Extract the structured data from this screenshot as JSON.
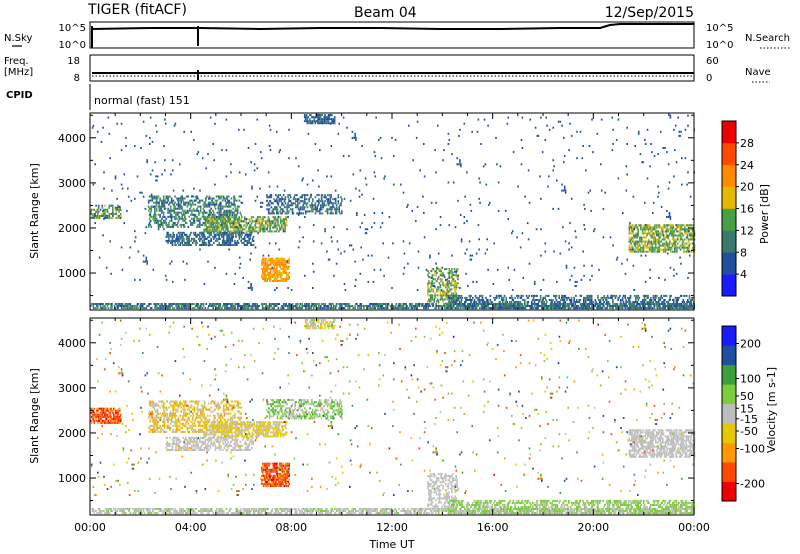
{
  "header": {
    "title": "TIGER (fitACF)",
    "beam": "Beam 04",
    "date": "12/Sep/2015"
  },
  "status_panels": {
    "nsky": {
      "label": "N.Sky",
      "top_tick": "10^5",
      "bottom_tick": "10^0",
      "right_label": "N.Search",
      "right_top_tick": "10^5",
      "right_bottom_tick": "10^0"
    },
    "freq": {
      "label_line1": "Freq.",
      "label_line2": "[MHz]",
      "top_tick": "18",
      "bottom_tick": "8",
      "right_label": "Nave",
      "right_top_tick": "60",
      "right_bottom_tick": "0"
    },
    "cpid": {
      "label": "CPID",
      "mode_text": "normal (fast) 151"
    }
  },
  "chart_data": [
    {
      "type": "heatmap",
      "name": "power",
      "ylabel": "Slant Range [km]",
      "ylim": [
        180,
        4550
      ],
      "yticks": [
        "1000",
        "2000",
        "3000",
        "4000"
      ],
      "ytick_values": [
        1000,
        2000,
        3000,
        4000
      ],
      "xlim": [
        0,
        24
      ],
      "colorbar": {
        "label": "Power [dB]",
        "range": [
          0,
          32
        ],
        "ticks": [
          "4",
          "8",
          "12",
          "16",
          "20",
          "24",
          "28"
        ],
        "tick_values": [
          4,
          8,
          12,
          16,
          20,
          24,
          28
        ],
        "colors": [
          "#1a1aff",
          "#1f4f9f",
          "#3a7a6a",
          "#46a046",
          "#e6b800",
          "#ff8c00",
          "#ff4a00",
          "#ee0000"
        ]
      },
      "regions": [
        {
          "t": [
            0.0,
            24.0
          ],
          "r": [
            200,
            330
          ],
          "p": 0.55,
          "v": [
            4,
            14
          ]
        },
        {
          "t": [
            0.0,
            1.2
          ],
          "r": [
            2200,
            2500
          ],
          "p": 0.45,
          "v": [
            6,
            18
          ]
        },
        {
          "t": [
            2.3,
            6.0
          ],
          "r": [
            2000,
            2700
          ],
          "p": 0.35,
          "v": [
            6,
            14
          ]
        },
        {
          "t": [
            3.0,
            6.5
          ],
          "r": [
            1600,
            1900
          ],
          "p": 0.4,
          "v": [
            4,
            12
          ]
        },
        {
          "t": [
            4.5,
            7.8
          ],
          "r": [
            1900,
            2250
          ],
          "p": 0.5,
          "v": [
            10,
            18
          ]
        },
        {
          "t": [
            6.8,
            7.9
          ],
          "r": [
            800,
            1300
          ],
          "p": 0.6,
          "v": [
            18,
            24
          ]
        },
        {
          "t": [
            7.0,
            10.0
          ],
          "r": [
            2300,
            2750
          ],
          "p": 0.35,
          "v": [
            4,
            12
          ]
        },
        {
          "t": [
            8.5,
            9.7
          ],
          "r": [
            4300,
            4500
          ],
          "p": 0.5,
          "v": [
            4,
            10
          ]
        },
        {
          "t": [
            13.4,
            14.6
          ],
          "r": [
            300,
            1100
          ],
          "p": 0.35,
          "v": [
            8,
            20
          ]
        },
        {
          "t": [
            14.2,
            24.0
          ],
          "r": [
            200,
            500
          ],
          "p": 0.35,
          "v": [
            4,
            12
          ]
        },
        {
          "t": [
            21.4,
            24.0
          ],
          "r": [
            1450,
            2050
          ],
          "p": 0.5,
          "v": [
            10,
            20
          ]
        },
        {
          "t": [
            0.0,
            24.0
          ],
          "r": [
            600,
            4500
          ],
          "p": 0.012,
          "v": [
            4,
            8
          ]
        }
      ]
    },
    {
      "type": "heatmap",
      "name": "velocity",
      "ylabel": "Slant Range [km]",
      "ylim": [
        180,
        4550
      ],
      "yticks": [
        "1000",
        "2000",
        "3000",
        "4000"
      ],
      "ytick_values": [
        1000,
        2000,
        3000,
        4000
      ],
      "xlabel": "Time UT",
      "xlim": [
        0,
        24
      ],
      "xticks": [
        "00:00",
        "04:00",
        "08:00",
        "12:00",
        "16:00",
        "20:00",
        "00:00"
      ],
      "xtick_values": [
        0,
        4,
        8,
        12,
        16,
        20,
        24
      ],
      "colorbar": {
        "label": "Velocity [m s-1]",
        "range": [
          -250,
          250
        ],
        "ticks": [
          "-200",
          "-100",
          "-50",
          "-15",
          "15",
          "50",
          "100",
          "200"
        ],
        "tick_values": [
          -200,
          -100,
          -50,
          -15,
          15,
          50,
          100,
          200
        ],
        "colors": [
          "#ee0000",
          "#ff4a00",
          "#ff9900",
          "#e6c800",
          "#bdbdbd",
          "#7ccd3a",
          "#3aa03a",
          "#1f4f9f",
          "#1a1aff"
        ]
      },
      "regions": [
        {
          "t": [
            0.0,
            24.0
          ],
          "r": [
            200,
            330
          ],
          "p": 0.5,
          "v": [
            -20,
            40
          ]
        },
        {
          "t": [
            0.0,
            1.2
          ],
          "r": [
            2200,
            2550
          ],
          "p": 0.5,
          "v": [
            -220,
            -120
          ]
        },
        {
          "t": [
            2.3,
            6.0
          ],
          "r": [
            2000,
            2700
          ],
          "p": 0.35,
          "v": [
            -120,
            20
          ]
        },
        {
          "t": [
            3.0,
            6.5
          ],
          "r": [
            1600,
            1900
          ],
          "p": 0.4,
          "v": [
            -30,
            10
          ]
        },
        {
          "t": [
            4.5,
            7.8
          ],
          "r": [
            1900,
            2250
          ],
          "p": 0.5,
          "v": [
            -80,
            10
          ]
        },
        {
          "t": [
            6.8,
            7.9
          ],
          "r": [
            800,
            1300
          ],
          "p": 0.6,
          "v": [
            -220,
            -120
          ]
        },
        {
          "t": [
            7.0,
            10.0
          ],
          "r": [
            2300,
            2750
          ],
          "p": 0.35,
          "v": [
            -20,
            120
          ]
        },
        {
          "t": [
            8.5,
            9.7
          ],
          "r": [
            4300,
            4500
          ],
          "p": 0.5,
          "v": [
            -80,
            40
          ]
        },
        {
          "t": [
            13.4,
            14.6
          ],
          "r": [
            300,
            1100
          ],
          "p": 0.35,
          "v": [
            -10,
            15
          ]
        },
        {
          "t": [
            14.2,
            24.0
          ],
          "r": [
            200,
            500
          ],
          "p": 0.4,
          "v": [
            15,
            60
          ]
        },
        {
          "t": [
            21.4,
            24.0
          ],
          "r": [
            1450,
            2050
          ],
          "p": 0.5,
          "v": [
            -20,
            10
          ]
        },
        {
          "t": [
            0.0,
            24.0
          ],
          "r": [
            600,
            4500
          ],
          "p": 0.012,
          "v": [
            -200,
            200
          ]
        }
      ]
    }
  ]
}
